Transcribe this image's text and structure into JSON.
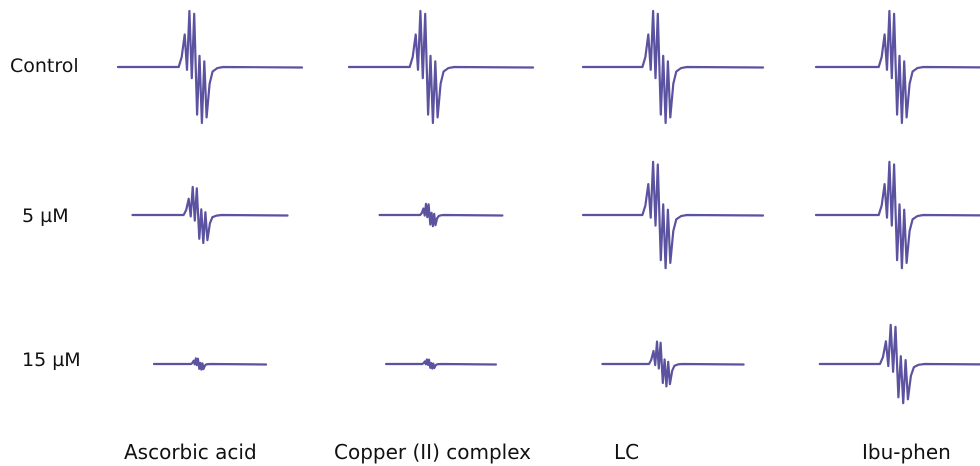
{
  "chart_data": {
    "type": "line",
    "row_labels": [
      "Control",
      "5 µM",
      "15 µM"
    ],
    "column_labels": [
      "Ascorbic acid",
      "Copper (II) complex",
      "LC",
      "Ibu-phen"
    ],
    "trace_color": "#5b52a0",
    "relative_signal_amplitude": [
      [
        1.0,
        1.0,
        1.0,
        1.0
      ],
      [
        0.5,
        0.2,
        0.95,
        0.95
      ],
      [
        0.1,
        0.08,
        0.4,
        0.7
      ]
    ]
  }
}
